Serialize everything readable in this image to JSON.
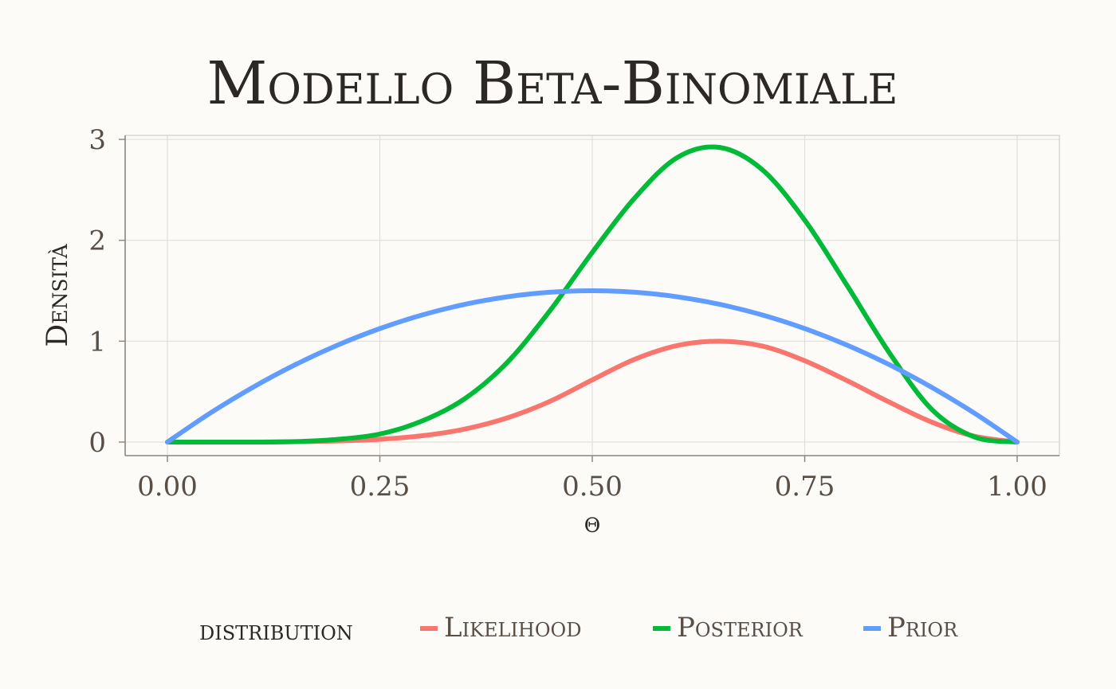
{
  "chart_data": {
    "type": "line",
    "title": "Modello Beta-Binomiale",
    "xlabel": "θ",
    "ylabel": "Densità",
    "xlim": [
      0,
      1
    ],
    "ylim": [
      0,
      3
    ],
    "grid": true,
    "x_ticks": [
      0,
      0.25,
      0.5,
      0.75,
      1
    ],
    "x_tick_labels": [
      "0.00",
      "0.25",
      "0.50",
      "0.75",
      "1.00"
    ],
    "y_ticks": [
      0,
      1,
      2,
      3
    ],
    "y_tick_labels": [
      "0",
      "1",
      "2",
      "3"
    ],
    "legend_title": "distribution",
    "legend_position": "bottom",
    "x": [
      0,
      0.05,
      0.1,
      0.15,
      0.2,
      0.25,
      0.3,
      0.35,
      0.4,
      0.45,
      0.5,
      0.55,
      0.6,
      0.65,
      0.7,
      0.75,
      0.8,
      0.85,
      0.9,
      0.95,
      1
    ],
    "series": [
      {
        "name": "Likelihood",
        "color": "#f8766d",
        "values": [
          0,
          0.0,
          0.0,
          0.004,
          0.011,
          0.028,
          0.063,
          0.129,
          0.24,
          0.403,
          0.616,
          0.821,
          0.957,
          1.0,
          0.952,
          0.806,
          0.608,
          0.394,
          0.196,
          0.058,
          0
        ]
      },
      {
        "name": "Posterior",
        "color": "#00ba38",
        "values": [
          0,
          0.0,
          0.0,
          0.005,
          0.027,
          0.08,
          0.21,
          0.43,
          0.79,
          1.3,
          1.88,
          2.42,
          2.82,
          2.92,
          2.7,
          2.2,
          1.55,
          0.88,
          0.32,
          0.05,
          0
        ]
      },
      {
        "name": "Prior",
        "color": "#619cff",
        "values": [
          0,
          0.285,
          0.54,
          0.765,
          0.96,
          1.125,
          1.26,
          1.365,
          1.44,
          1.485,
          1.5,
          1.485,
          1.44,
          1.365,
          1.26,
          1.125,
          0.96,
          0.765,
          0.54,
          0.285,
          0
        ]
      }
    ]
  }
}
